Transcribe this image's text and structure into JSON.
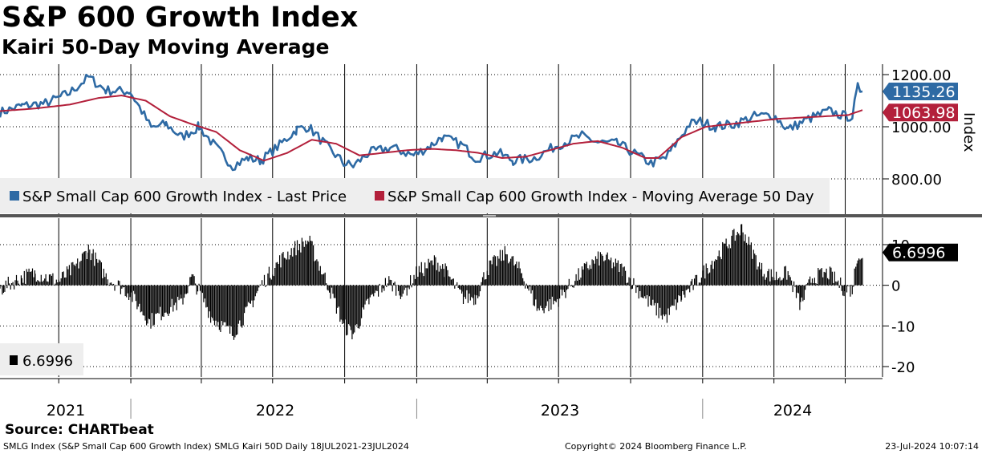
{
  "header": {
    "title": "S&P 600 Growth Index",
    "subtitle": "Kairi 50-Day Moving Average"
  },
  "source": "Source: CHARTbeat",
  "footer": {
    "left": "SMLG Index (S&P Small Cap 600 Growth Index) SMLG Kairi 50D  Daily 18JUL2021-23JUL2024",
    "center": "Copyright© 2024 Bloomberg Finance L.P.",
    "right": "23-Jul-2024 10:07:14"
  },
  "colors": {
    "price": "#2e6aa4",
    "moving_average": "#b3203b",
    "kairi": "#000000",
    "grid": "#000000"
  },
  "chart_data": [
    {
      "type": "line",
      "ylabel": "Index",
      "ylim": [
        770,
        1200
      ],
      "y_ticks": [
        {
          "value": 1200,
          "label": "1200.00"
        },
        {
          "value": 1000,
          "label": "1000.00"
        },
        {
          "value": 800,
          "label": "800.00"
        }
      ],
      "x_labels": [
        "2021",
        "2022",
        "2023",
        "2024"
      ],
      "last_values": {
        "price": "1135.26",
        "moving_average": "1063.98"
      },
      "legend": [
        {
          "name": "S&P Small Cap 600 Growth Index - Last Price",
          "color": "#2e6aa4"
        },
        {
          "name": "S&P Small Cap 600 Growth Index - Moving Average 50 Day",
          "color": "#b3203b"
        }
      ],
      "series": [
        {
          "name": "S&P Small Cap 600 Growth Index - Last Price",
          "x": [
            "2021-07-18",
            "2021-08-15",
            "2021-09-15",
            "2021-10-15",
            "2021-11-08",
            "2021-11-30",
            "2021-12-31",
            "2022-01-15",
            "2022-01-27",
            "2022-02-15",
            "2022-03-07",
            "2022-03-29",
            "2022-04-20",
            "2022-05-11",
            "2022-05-31",
            "2022-06-16",
            "2022-07-10",
            "2022-08-01",
            "2022-08-16",
            "2022-09-10",
            "2022-09-30",
            "2022-10-12",
            "2022-11-01",
            "2022-11-30",
            "2022-12-28",
            "2023-01-20",
            "2023-02-02",
            "2023-02-28",
            "2023-03-17",
            "2023-04-15",
            "2023-05-04",
            "2023-05-31",
            "2023-06-30",
            "2023-07-31",
            "2023-08-20",
            "2023-09-15",
            "2023-10-27",
            "2023-11-15",
            "2023-12-15",
            "2023-12-29",
            "2024-01-17",
            "2024-02-10",
            "2024-03-07",
            "2024-03-31",
            "2024-04-19",
            "2024-05-15",
            "2024-06-10",
            "2024-07-01",
            "2024-07-10",
            "2024-07-17",
            "2024-07-23"
          ],
          "values": [
            1055,
            1080,
            1090,
            1130,
            1190,
            1140,
            1135,
            1060,
            995,
            1010,
            960,
            1000,
            920,
            850,
            880,
            870,
            930,
            990,
            1000,
            920,
            860,
            850,
            900,
            920,
            890,
            930,
            960,
            930,
            880,
            900,
            870,
            880,
            930,
            965,
            940,
            935,
            860,
            880,
            1010,
            1020,
            1000,
            1010,
            1040,
            1045,
            990,
            1030,
            1060,
            1040,
            1040,
            1150,
            1135.26
          ]
        },
        {
          "name": "S&P Small Cap 600 Growth Index - Moving Average 50 Day",
          "x": [
            "2021-07-18",
            "2021-09-01",
            "2021-10-15",
            "2021-11-20",
            "2021-12-20",
            "2022-01-20",
            "2022-02-20",
            "2022-03-20",
            "2022-04-20",
            "2022-05-20",
            "2022-06-20",
            "2022-07-20",
            "2022-08-20",
            "2022-09-20",
            "2022-10-20",
            "2022-11-20",
            "2022-12-20",
            "2023-01-20",
            "2023-02-20",
            "2023-03-20",
            "2023-04-20",
            "2023-05-20",
            "2023-06-20",
            "2023-07-20",
            "2023-08-20",
            "2023-09-20",
            "2023-10-20",
            "2023-11-05",
            "2023-12-05",
            "2024-01-05",
            "2024-02-05",
            "2024-03-05",
            "2024-04-05",
            "2024-05-05",
            "2024-06-05",
            "2024-07-05",
            "2024-07-23"
          ],
          "values": [
            1060,
            1070,
            1085,
            1110,
            1120,
            1100,
            1040,
            1010,
            980,
            910,
            870,
            900,
            950,
            935,
            890,
            900,
            910,
            915,
            910,
            900,
            880,
            885,
            910,
            935,
            945,
            920,
            880,
            880,
            960,
            1000,
            1010,
            1020,
            1030,
            1035,
            1040,
            1045,
            1063.98
          ]
        }
      ]
    },
    {
      "type": "bar",
      "ylim": [
        -22,
        16
      ],
      "y_ticks": [
        {
          "value": 10,
          "label": "10"
        },
        {
          "value": 0,
          "label": "0"
        },
        {
          "value": -10,
          "label": "-10"
        },
        {
          "value": -20,
          "label": "-20"
        }
      ],
      "last_value": "6.6996",
      "legend_value": "6.6996",
      "series": [
        {
          "name": "Kairi",
          "x": [
            "2021-07-18",
            "2021-08-15",
            "2021-09-01",
            "2021-10-01",
            "2021-10-25",
            "2021-11-08",
            "2021-12-01",
            "2021-12-31",
            "2022-01-25",
            "2022-02-15",
            "2022-03-07",
            "2022-03-20",
            "2022-04-15",
            "2022-05-11",
            "2022-05-28",
            "2022-06-16",
            "2022-07-10",
            "2022-07-28",
            "2022-08-16",
            "2022-09-10",
            "2022-09-30",
            "2022-10-12",
            "2022-11-01",
            "2022-11-25",
            "2022-12-15",
            "2023-01-01",
            "2023-01-25",
            "2023-02-05",
            "2023-02-28",
            "2023-03-17",
            "2023-04-01",
            "2023-04-25",
            "2023-05-15",
            "2023-06-05",
            "2023-06-28",
            "2023-07-25",
            "2023-08-10",
            "2023-08-25",
            "2023-09-20",
            "2023-10-10",
            "2023-10-28",
            "2023-11-15",
            "2023-12-05",
            "2023-12-20",
            "2024-01-10",
            "2024-02-01",
            "2024-02-20",
            "2024-03-15",
            "2024-04-01",
            "2024-04-19",
            "2024-05-05",
            "2024-05-20",
            "2024-06-10",
            "2024-06-30",
            "2024-07-10",
            "2024-07-17",
            "2024-07-23"
          ],
          "values": [
            -1,
            2,
            3,
            1,
            5,
            9,
            2,
            -2,
            -9,
            -6,
            -4,
            2,
            -8,
            -12,
            -7,
            0,
            6,
            9,
            11,
            0,
            -10,
            -12,
            -4,
            1,
            -2,
            3,
            6,
            4,
            -3,
            -3,
            4,
            8,
            3,
            -6,
            -4,
            2,
            5,
            7,
            4,
            -1,
            -5,
            -8,
            -3,
            0,
            5,
            10,
            14,
            4,
            2,
            3,
            -5,
            2,
            3,
            -1,
            -1,
            8,
            6.6996
          ]
        }
      ]
    }
  ]
}
